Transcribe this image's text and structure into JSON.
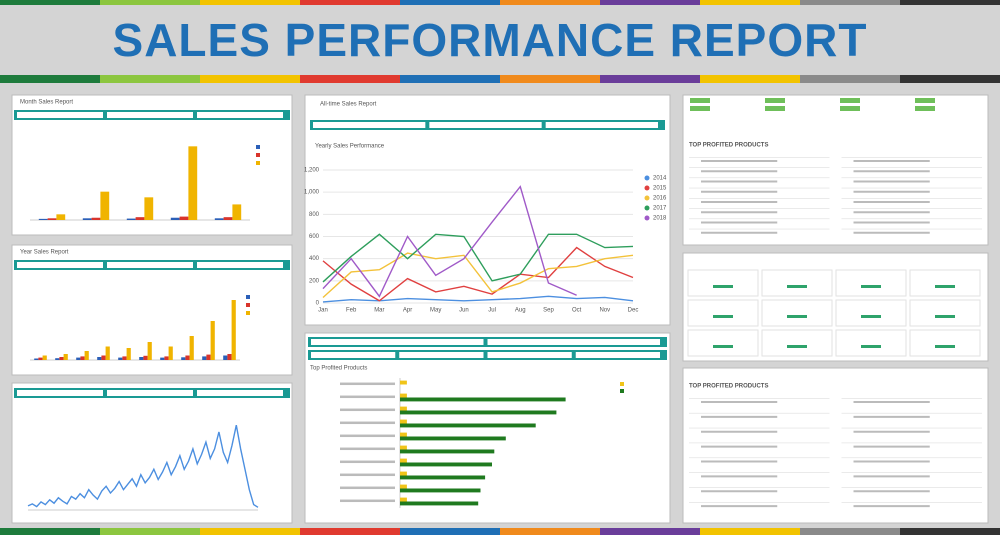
{
  "header": {
    "title": "SALES PERFORMANCE REPORT"
  },
  "month_panel": {
    "title": "Month Sales Report",
    "chart": {
      "type": "bar",
      "ylim": [
        0,
        300
      ],
      "series": [
        {
          "color": "#2b5fb8",
          "values": [
            4,
            6,
            5,
            8,
            6
          ]
        },
        {
          "color": "#d9342b",
          "values": [
            6,
            8,
            10,
            12,
            10
          ]
        },
        {
          "color": "#f0b400",
          "values": [
            20,
            100,
            80,
            260,
            55
          ]
        }
      ]
    }
  },
  "year_panel": {
    "title": "Year Sales Report",
    "chart": {
      "type": "bar",
      "ylim": [
        0,
        250
      ],
      "series": [
        {
          "color": "#2b5fb8",
          "values": [
            5,
            6,
            8,
            10,
            8,
            10,
            8,
            9,
            12,
            15
          ]
        },
        {
          "color": "#d9342b",
          "values": [
            8,
            10,
            12,
            15,
            12,
            14,
            12,
            15,
            18,
            20
          ]
        },
        {
          "color": "#f0b400",
          "values": [
            15,
            20,
            30,
            45,
            40,
            60,
            45,
            80,
            130,
            200
          ]
        }
      ]
    }
  },
  "daily_panel": {
    "chart": {
      "type": "line",
      "ylim": [
        0,
        1400
      ],
      "series": [
        {
          "color": "#4c8fe0",
          "values": [
            60,
            90,
            50,
            120,
            80,
            150,
            100,
            180,
            130,
            90,
            200,
            160,
            240,
            180,
            300,
            220,
            160,
            280,
            350,
            250,
            320,
            420,
            300,
            380,
            460,
            350,
            520,
            400,
            480,
            600,
            450,
            560,
            700,
            520,
            640,
            800,
            600,
            720,
            900,
            680,
            820,
            1000,
            760,
            900,
            1150,
            850,
            700,
            950,
            1250,
            900,
            600,
            300,
            80,
            40
          ]
        }
      ]
    }
  },
  "alltime_panel": {
    "title": "All-time Sales Report",
    "chart": {
      "type": "line",
      "title": "Yearly Sales Performance",
      "categories": [
        "Jan",
        "Feb",
        "Mar",
        "Apr",
        "May",
        "Jun",
        "Jul",
        "Aug",
        "Sep",
        "Oct",
        "Nov",
        "Dec"
      ],
      "ylim": [
        0,
        1200
      ],
      "yticks": [
        0,
        200,
        400,
        600,
        800,
        1000,
        1200
      ],
      "yticklabels": [
        "0",
        "200",
        "400",
        "600",
        "800",
        "1,000",
        "1,200"
      ],
      "series": [
        {
          "name": "2014",
          "color": "#4c8fe0",
          "values": [
            10,
            30,
            20,
            40,
            30,
            20,
            30,
            40,
            60,
            40,
            50,
            20
          ]
        },
        {
          "name": "2015",
          "color": "#e04040",
          "values": [
            380,
            170,
            20,
            220,
            100,
            150,
            80,
            260,
            230,
            500,
            330,
            230
          ]
        },
        {
          "name": "2016",
          "color": "#f3c23a",
          "values": [
            50,
            280,
            300,
            450,
            400,
            430,
            100,
            180,
            310,
            330,
            400,
            430
          ]
        },
        {
          "name": "2017",
          "color": "#2e9e5c",
          "values": [
            190,
            420,
            620,
            400,
            620,
            600,
            200,
            260,
            620,
            620,
            500,
            510
          ]
        },
        {
          "name": "2018",
          "color": "#a05ac8",
          "values": [
            130,
            400,
            60,
            600,
            250,
            400,
            730,
            1050,
            180,
            70,
            null,
            null
          ]
        }
      ]
    }
  },
  "products_panel": {
    "chart": {
      "type": "hbar",
      "title": "Top Profited Products",
      "xlim": [
        0,
        100
      ],
      "series": [
        {
          "color": "#f0c419",
          "values": [
            3,
            3,
            3,
            3,
            3,
            3,
            3,
            3,
            3,
            3
          ]
        },
        {
          "color": "#1f7a1f",
          "values": [
            0,
            72,
            68,
            59,
            46,
            41,
            40,
            37,
            35,
            34
          ]
        }
      ]
    }
  },
  "table_top": {
    "heading": "TOP PROFITED PRODUCTS"
  },
  "table_bottom": {
    "heading": "TOP PROFITED PRODUCTS"
  }
}
